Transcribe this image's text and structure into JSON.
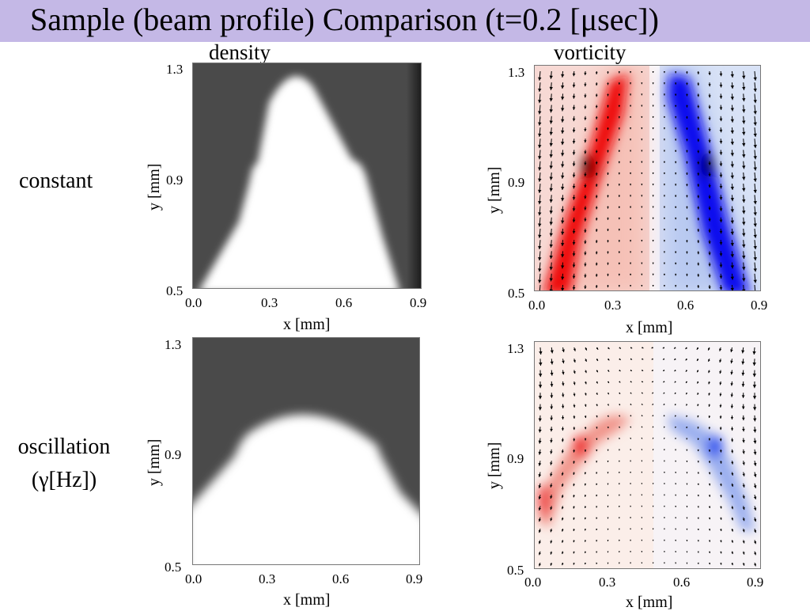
{
  "slide": {
    "title": "Sample (beam profile) Comparison (t=0.2 [μsec])",
    "title_bar_color": "#c4b8e6",
    "columns": {
      "left": "density",
      "right": "vorticity"
    },
    "rows": {
      "top": "constant",
      "bottom_line1": "oscillation",
      "bottom_line2": "(γ[Hz])"
    }
  },
  "axes": {
    "xlabel": "x  [mm]",
    "ylabel": "y  [mm]",
    "x_ticks": [
      "0.0",
      "0.3",
      "0.6",
      "0.9"
    ],
    "y_ticks": [
      "1.3",
      "0.9",
      "0.5"
    ]
  },
  "colors": {
    "density_background": "#4a4a4a",
    "density_beam": "#ffffff",
    "vorticity_positive": "#ee1111",
    "vorticity_negative": "#1111ee",
    "vector_arrow": "#000000"
  },
  "chart_data": [
    {
      "type": "heatmap",
      "quantity": "density",
      "case": "constant",
      "xlim": [
        0.0,
        0.9
      ],
      "ylim": [
        0.5,
        1.3
      ],
      "beam_tip_y": 1.28,
      "beam_base_halfwidth": 0.36
    },
    {
      "type": "heatmap",
      "quantity": "vorticity",
      "case": "constant",
      "xlim": [
        0.0,
        0.9
      ],
      "ylim": [
        0.5,
        1.3
      ],
      "shear_layers": [
        "left positive (red)",
        "right negative (blue)"
      ]
    },
    {
      "type": "heatmap",
      "quantity": "density",
      "case": "oscillation",
      "xlim": [
        0.0,
        0.9
      ],
      "ylim": [
        0.5,
        1.3
      ],
      "beam_tip_y": 1.02
    },
    {
      "type": "heatmap",
      "quantity": "vorticity",
      "case": "oscillation",
      "xlim": [
        0.0,
        0.9
      ],
      "ylim": [
        0.5,
        1.3
      ],
      "shear_layers": [
        "left positive (red)",
        "right negative (blue)"
      ]
    }
  ]
}
